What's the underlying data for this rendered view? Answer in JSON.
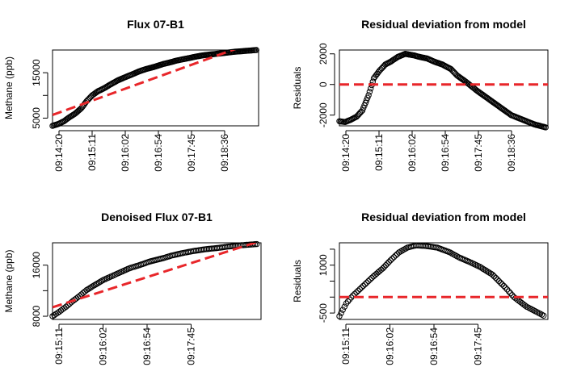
{
  "chart_data": [
    {
      "type": "scatter",
      "title": "Flux 07-B1",
      "xlabel": "",
      "ylabel": "Methane (ppb)",
      "xticks": [
        "09:14:20",
        "09:15:11",
        "09:16:02",
        "09:16:54",
        "09:17:45",
        "09:18:36"
      ],
      "xlim": [
        0,
        364
      ],
      "ylim": [
        3300,
        20000
      ],
      "yticks": [
        5000,
        10000,
        15000
      ],
      "ytick_labels": [
        "5000",
        "",
        "15000"
      ],
      "grid": false,
      "series": [
        {
          "kind": "points",
          "color": "#000000",
          "x": [
            0,
            10,
            20,
            30,
            40,
            51,
            60,
            70,
            80,
            90,
            102,
            115,
            130,
            140,
            153,
            165,
            180,
            195,
            205,
            220,
            240,
            255,
            270,
            285,
            300,
            320,
            340,
            360
          ],
          "y": [
            3300,
            3700,
            4300,
            5200,
            6000,
            7200,
            8700,
            10000,
            10900,
            11500,
            12400,
            13300,
            14100,
            14600,
            15300,
            15800,
            16300,
            16900,
            17200,
            17700,
            18200,
            18600,
            18900,
            19100,
            19300,
            19600,
            19800,
            20000
          ]
        },
        {
          "kind": "fit-line",
          "color": "#e8262a",
          "dashed": true,
          "x": [
            0,
            360
          ],
          "y": [
            5700,
            21900
          ]
        }
      ]
    },
    {
      "type": "scatter",
      "title": "Residual deviation from model",
      "xlabel": "",
      "ylabel": "Residuals",
      "xticks": [
        "09:14:20",
        "09:15:11",
        "09:16:02",
        "09:16:54",
        "09:17:45",
        "09:18:36"
      ],
      "xlim": [
        0,
        364
      ],
      "ylim": [
        -2700,
        2250
      ],
      "yticks": [
        -2000,
        0,
        2000
      ],
      "ytick_labels": [
        "-2000",
        "0",
        "2000"
      ],
      "grid": false,
      "series": [
        {
          "kind": "points",
          "color": "#000000",
          "x": [
            0,
            10,
            20,
            30,
            40,
            51,
            60,
            70,
            80,
            90,
            102,
            115,
            130,
            140,
            153,
            165,
            180,
            195,
            205,
            220,
            240,
            255,
            270,
            285,
            300,
            320,
            340,
            360
          ],
          "y": [
            -2400,
            -2450,
            -2300,
            -2100,
            -1700,
            -700,
            400,
            900,
            1300,
            1500,
            1800,
            2000,
            1900,
            1800,
            1700,
            1500,
            1300,
            1000,
            600,
            200,
            -400,
            -800,
            -1200,
            -1600,
            -2000,
            -2300,
            -2600,
            -2800
          ]
        },
        {
          "kind": "zero-line",
          "color": "#e8262a",
          "dashed": true,
          "x": [
            0,
            364
          ],
          "y": [
            0,
            0
          ]
        }
      ]
    },
    {
      "type": "scatter",
      "title": "Denoised Flux 07-B1",
      "xlabel": "",
      "ylabel": "Methane (ppb)",
      "xticks": [
        "09:15:11",
        "09:16:02",
        "09:16:54",
        "09:17:45"
      ],
      "xlim": [
        0,
        245
      ],
      "ylim": [
        7500,
        19500
      ],
      "yticks": [
        8000,
        12000,
        16000
      ],
      "ytick_labels": [
        "8000",
        "",
        "16000"
      ],
      "grid": false,
      "series": [
        {
          "kind": "points",
          "color": "#000000",
          "x": [
            0,
            8,
            16,
            24,
            32,
            40,
            51,
            60,
            70,
            80,
            90,
            102,
            115,
            130,
            140,
            153,
            165,
            180,
            195,
            205,
            220,
            240
          ],
          "y": [
            8000,
            8700,
            9500,
            10400,
            11200,
            12100,
            13000,
            13700,
            14300,
            14900,
            15500,
            16000,
            16600,
            17100,
            17500,
            17900,
            18200,
            18500,
            18700,
            18900,
            19100,
            19300
          ]
        },
        {
          "kind": "fit-line",
          "color": "#e8262a",
          "dashed": true,
          "x": [
            0,
            240
          ],
          "y": [
            9400,
            19600
          ]
        }
      ]
    },
    {
      "type": "scatter",
      "title": "Residual deviation from model",
      "xlabel": "",
      "ylabel": "Residuals",
      "xticks": [
        "09:15:11",
        "09:16:02",
        "09:16:54",
        "09:17:45"
      ],
      "xlim": [
        0,
        245
      ],
      "ylim": [
        -700,
        1700
      ],
      "yticks": [
        -500,
        0,
        500,
        1000,
        1500
      ],
      "ytick_labels": [
        "-500",
        "",
        "",
        "1000",
        ""
      ],
      "grid": false,
      "series": [
        {
          "kind": "points",
          "color": "#000000",
          "x": [
            0,
            8,
            16,
            24,
            32,
            40,
            51,
            60,
            70,
            80,
            90,
            102,
            115,
            130,
            140,
            153,
            165,
            180,
            195,
            205,
            220,
            240
          ],
          "y": [
            -600,
            -200,
            50,
            250,
            450,
            650,
            900,
            1150,
            1400,
            1550,
            1620,
            1600,
            1550,
            1400,
            1250,
            1100,
            950,
            700,
            300,
            0,
            -300,
            -580
          ]
        },
        {
          "kind": "zero-line",
          "color": "#e8262a",
          "dashed": true,
          "x": [
            0,
            245
          ],
          "y": [
            0,
            0
          ]
        }
      ]
    }
  ]
}
